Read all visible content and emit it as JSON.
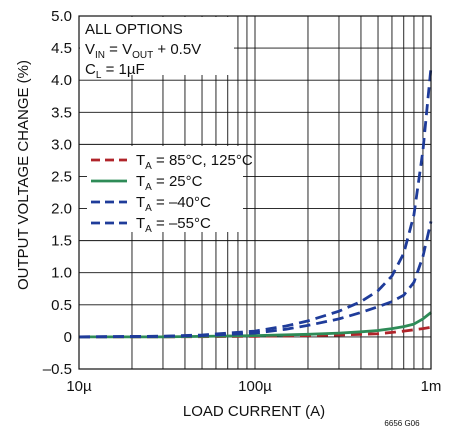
{
  "chart_data": {
    "type": "line",
    "figure_id": "6656 G06",
    "xlabel": "LOAD CURRENT (A)",
    "ylabel": "OUTPUT VOLTAGE CHANGE (%)",
    "xscale": "log",
    "xlim": [
      1e-05,
      0.001
    ],
    "ylim": [
      -0.5,
      5.0
    ],
    "x_ticks": [
      {
        "value": 1e-05,
        "label": "10µ"
      },
      {
        "value": 0.0001,
        "label": "100µ"
      },
      {
        "value": 0.001,
        "label": "1m"
      }
    ],
    "y_ticks": [
      {
        "value": -0.5,
        "label": "–0.5"
      },
      {
        "value": 0,
        "label": "0"
      },
      {
        "value": 0.5,
        "label": "0.5"
      },
      {
        "value": 1.0,
        "label": "1.0"
      },
      {
        "value": 1.5,
        "label": "1.5"
      },
      {
        "value": 2.0,
        "label": "2.0"
      },
      {
        "value": 2.5,
        "label": "2.5"
      },
      {
        "value": 3.0,
        "label": "3.0"
      },
      {
        "value": 3.5,
        "label": "3.5"
      },
      {
        "value": 4.0,
        "label": "4.0"
      },
      {
        "value": 4.5,
        "label": "4.5"
      },
      {
        "value": 5.0,
        "label": "5.0"
      }
    ],
    "grid": true,
    "annotations": [
      {
        "label": "ALL OPTIONS"
      },
      {
        "label": "V",
        "sub": "IN",
        "rest": " = V",
        "sub2": "OUT",
        "rest2": " + 0.5V"
      },
      {
        "label": "C",
        "sub": "L",
        "rest": " = 1µF",
        "sub2": "",
        "rest2": ""
      }
    ],
    "legend_position": "center-left",
    "series": [
      {
        "legend": "T",
        "legend_sub": "A",
        "legend_rest": " = 85°C, 125°C",
        "color": "#b0242a",
        "dash": true,
        "x": [
          1e-05,
          3e-05,
          0.0001,
          0.0002,
          0.0003,
          0.0004,
          0.0005,
          0.0006,
          0.0007,
          0.0008,
          0.0009,
          0.001
        ],
        "y": [
          0.0,
          0.0,
          0.01,
          0.02,
          0.03,
          0.04,
          0.05,
          0.07,
          0.09,
          0.11,
          0.13,
          0.15
        ]
      },
      {
        "legend": "T",
        "legend_sub": "A",
        "legend_rest": " = 25°C",
        "color": "#2e8b57",
        "dash": false,
        "x": [
          1e-05,
          3e-05,
          0.0001,
          0.0002,
          0.0003,
          0.0004,
          0.0005,
          0.0006,
          0.0007,
          0.0008,
          0.0009,
          0.001
        ],
        "y": [
          0.0,
          0.0,
          0.02,
          0.04,
          0.06,
          0.08,
          0.1,
          0.13,
          0.16,
          0.2,
          0.28,
          0.38
        ]
      },
      {
        "legend": "T",
        "legend_sub": "A",
        "legend_rest": " = –40°C",
        "color": "#1f3c9a",
        "dash": true,
        "x": [
          1e-05,
          3e-05,
          5e-05,
          0.0001,
          0.00015,
          0.0002,
          0.0003,
          0.0004,
          0.0005,
          0.0006,
          0.0007,
          0.0008,
          0.0009,
          0.001
        ],
        "y": [
          0.0,
          0.01,
          0.02,
          0.06,
          0.12,
          0.18,
          0.28,
          0.38,
          0.47,
          0.55,
          0.65,
          0.85,
          1.25,
          1.8
        ]
      },
      {
        "legend": "T",
        "legend_sub": "A",
        "legend_rest": " = –55°C",
        "color": "#1f3c9a",
        "dash": true,
        "x": [
          1e-05,
          3e-05,
          5e-05,
          0.0001,
          0.00015,
          0.0002,
          0.0003,
          0.0004,
          0.0005,
          0.0006,
          0.0007,
          0.0008,
          0.0009,
          0.001
        ],
        "y": [
          0.0,
          0.01,
          0.03,
          0.09,
          0.17,
          0.25,
          0.4,
          0.55,
          0.72,
          0.95,
          1.3,
          1.9,
          2.9,
          4.2
        ]
      }
    ]
  }
}
